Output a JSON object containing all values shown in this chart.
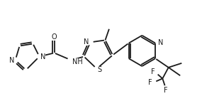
{
  "bg": "#ffffff",
  "lc": "#1a1a1a",
  "lw": 1.3,
  "fs": 7.0,
  "xlim": [
    0,
    9.5
  ],
  "ylim": [
    0,
    5.2
  ],
  "figsize": [
    2.85,
    1.56
  ],
  "dpi": 100
}
